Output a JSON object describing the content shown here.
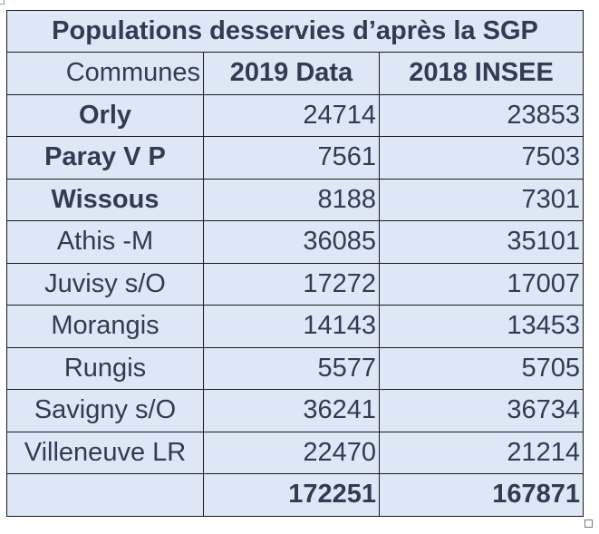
{
  "table": {
    "title": "Populations desservies d’après la SGP",
    "headers": [
      "Communes",
      "2019 Data",
      "2018 INSEE"
    ],
    "rows": [
      {
        "commune": "Orly",
        "v2019": "24714",
        "v2018": "23853",
        "bold_name": true
      },
      {
        "commune": "Paray V P",
        "v2019": "7561",
        "v2018": "7503",
        "bold_name": true
      },
      {
        "commune": "Wissous",
        "v2019": "8188",
        "v2018": "7301",
        "bold_name": true
      },
      {
        "commune": "Athis -M",
        "v2019": "36085",
        "v2018": "35101",
        "bold_name": false
      },
      {
        "commune": "Juvisy s/O",
        "v2019": "17272",
        "v2018": "17007",
        "bold_name": false
      },
      {
        "commune": "Morangis",
        "v2019": "14143",
        "v2018": "13453",
        "bold_name": false
      },
      {
        "commune": "Rungis",
        "v2019": "5577",
        "v2018": "5705",
        "bold_name": false
      },
      {
        "commune": "Savigny s/O",
        "v2019": "36241",
        "v2018": "36734",
        "bold_name": false
      },
      {
        "commune": "Villeneuve LR",
        "v2019": "22470",
        "v2018": "21214",
        "bold_name": false
      }
    ],
    "totals": {
      "label": "",
      "v2019": "172251",
      "v2018": "167871"
    }
  },
  "colors": {
    "cell_background": "#dde7f6",
    "text": "#2f3c52",
    "border": "#1a1a1a"
  }
}
